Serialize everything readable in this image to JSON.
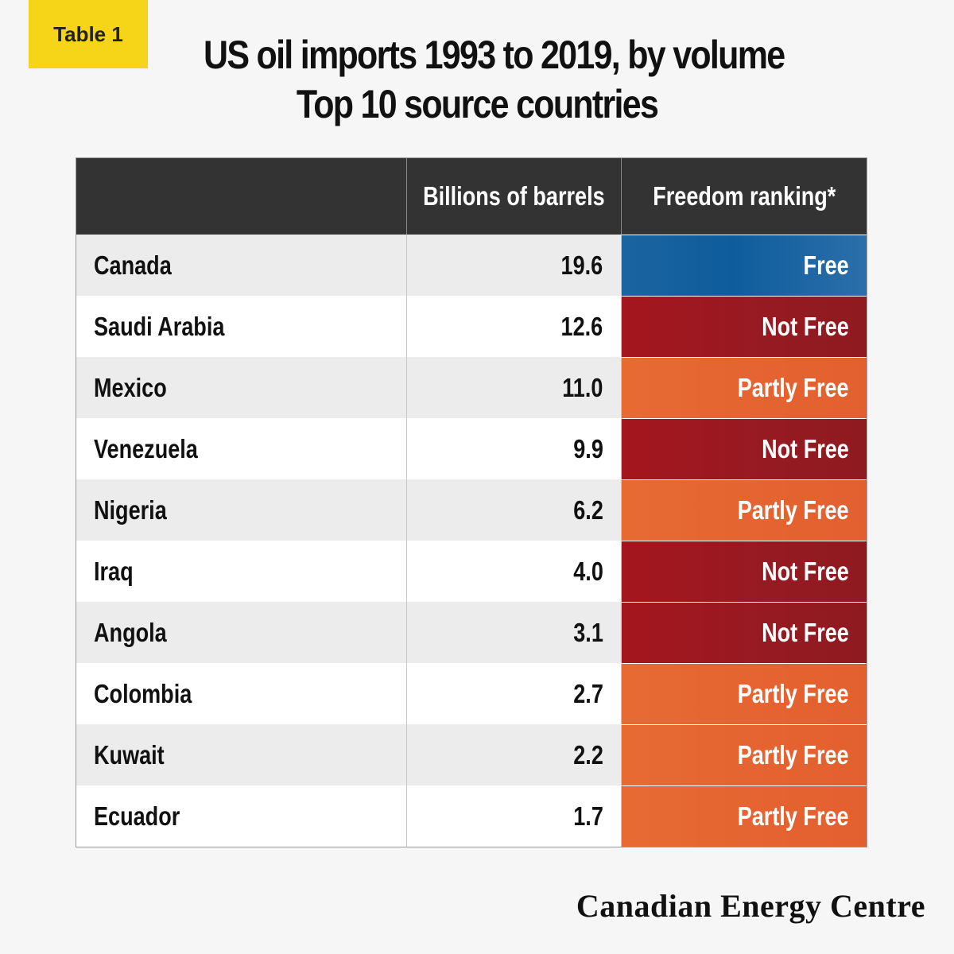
{
  "badge": "Table 1",
  "title_line1": "US oil imports 1993 to 2019, by volume",
  "title_line2": "Top 10 source countries",
  "columns": [
    "",
    "Billions of barrels",
    "Freedom ranking*"
  ],
  "rows": [
    {
      "country": "Canada",
      "barrels": "19.6",
      "ranking": "Free"
    },
    {
      "country": "Saudi Arabia",
      "barrels": "12.6",
      "ranking": "Not Free"
    },
    {
      "country": "Mexico",
      "barrels": "11.0",
      "ranking": "Partly Free"
    },
    {
      "country": "Venezuela",
      "barrels": "9.9",
      "ranking": "Not Free"
    },
    {
      "country": "Nigeria",
      "barrels": "6.2",
      "ranking": "Partly Free"
    },
    {
      "country": "Iraq",
      "barrels": "4.0",
      "ranking": "Not Free"
    },
    {
      "country": "Angola",
      "barrels": "3.1",
      "ranking": "Not Free"
    },
    {
      "country": "Colombia",
      "barrels": "2.7",
      "ranking": "Partly Free"
    },
    {
      "country": "Kuwait",
      "barrels": "2.2",
      "ranking": "Partly Free"
    },
    {
      "country": "Ecuador",
      "barrels": "1.7",
      "ranking": "Partly Free"
    }
  ],
  "ranking_colors": {
    "Free": "#1a64a0",
    "Not Free": "#9a1820",
    "Partly Free": "#e56431"
  },
  "logo": "Canadian Energy Centre",
  "chart_data": {
    "type": "table",
    "title": "US oil imports 1993 to 2019, by volume",
    "subtitle": "Top 10 source countries",
    "columns": [
      "",
      "Billions of barrels",
      "Freedom ranking*"
    ],
    "categories": [
      "Canada",
      "Saudi Arabia",
      "Mexico",
      "Venezuela",
      "Nigeria",
      "Iraq",
      "Angola",
      "Colombia",
      "Kuwait",
      "Ecuador"
    ],
    "series": [
      {
        "name": "Billions of barrels",
        "values": [
          19.6,
          12.6,
          11.0,
          9.9,
          6.2,
          4.0,
          3.1,
          2.7,
          2.2,
          1.7
        ]
      },
      {
        "name": "Freedom ranking*",
        "values": [
          "Free",
          "Not Free",
          "Partly Free",
          "Not Free",
          "Partly Free",
          "Not Free",
          "Not Free",
          "Partly Free",
          "Partly Free",
          "Partly Free"
        ]
      }
    ]
  }
}
